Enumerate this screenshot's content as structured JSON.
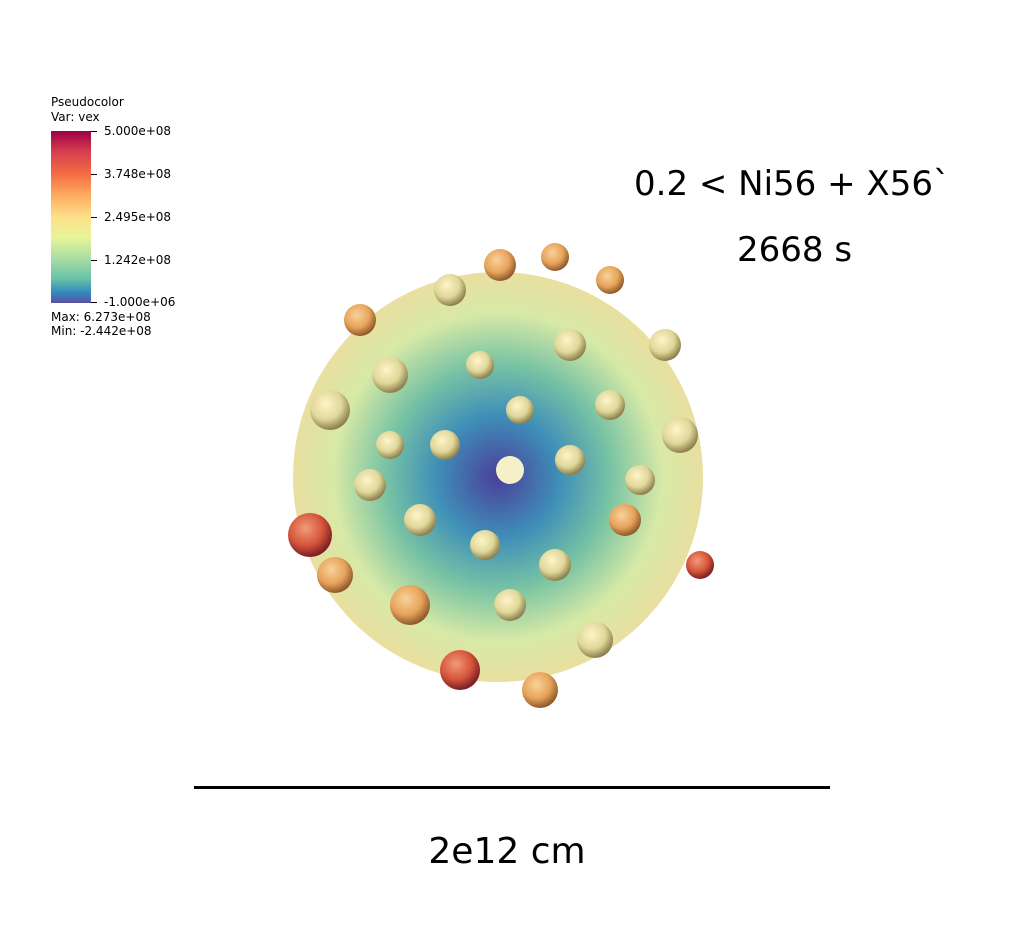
{
  "legend": {
    "title": "Pseudocolor",
    "variable": "Var: vex",
    "ticks": [
      "5.000e+08",
      "3.748e+08",
      "2.495e+08",
      "1.242e+08",
      "-1.000e+06"
    ],
    "max": "Max:  6.273e+08",
    "min": "Min: -2.442e+08"
  },
  "annotation": {
    "condition": "0.2 < Ni56 + X56`",
    "time": "2668 s"
  },
  "scale": {
    "label": "2e12 cm"
  }
}
